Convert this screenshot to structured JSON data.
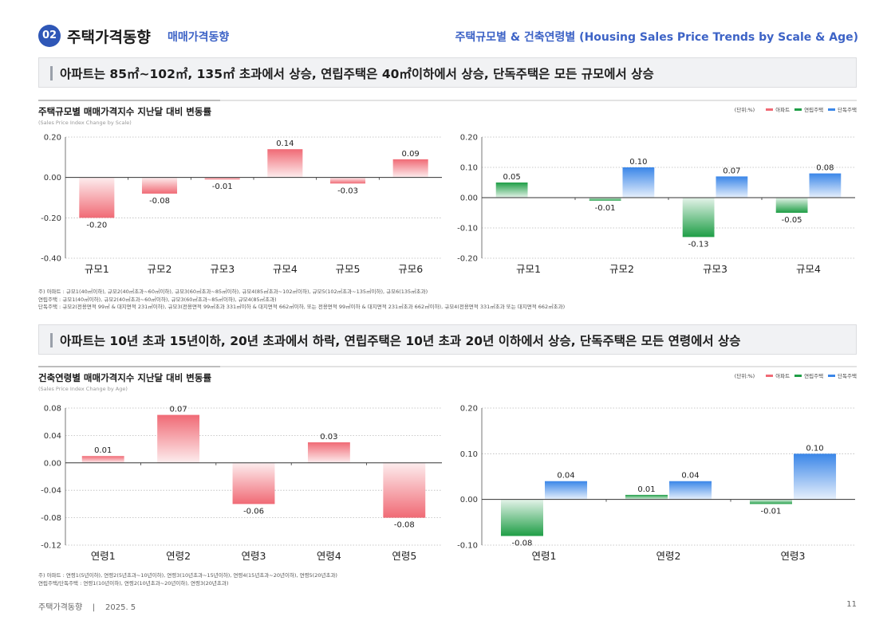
{
  "header": {
    "badge": "02",
    "title": "주택가격동향",
    "subtitle": "매매가격동향",
    "right_title": "주택규모별 & 건축연령별 (Housing Sales Price Trends by Scale & Age)"
  },
  "colors": {
    "accent": "#2f57b7",
    "apartment": "#f06a75",
    "row_house": "#1f9e46",
    "detached": "#3a86e8"
  },
  "section1": {
    "headline": "아파트는  85㎡~102㎡, 135㎡ 초과에서 상승, 연립주택은 40㎡이하에서 상승, 단독주택은 모든 규모에서 상승",
    "chart_title": "주택규모별 매매가격지수 지난달 대비 변동률",
    "chart_subtitle": "(Sales Price Index Change by Scale)",
    "legend": {
      "unit": "(단위:%)",
      "items": [
        "아파트",
        "연립주택",
        "단독주택"
      ]
    },
    "notes": [
      "주) 아파트 : 규모1(40㎡이하), 규모2(40㎡초과~60㎡이하), 규모3(60㎡초과~85㎡이하), 규모4(85㎡초과~102㎡이하), 규모5(102㎡초과~135㎡이하), 규모6(135㎡초과)",
      "     연립주택 : 규모1(40㎡이하), 규모2(40㎡초과~60㎡이하), 규모3(60㎡초과~85㎡이하), 규모4(85㎡초과)",
      "     단독주택 : 규모2(전용면적 99㎡ & 대지면적 231㎡이하), 규모3(전용면적 99㎡초과 331㎡이하 & 대지면적 662㎡이하, 또는 전용면적 99㎡이하 & 대지면적 231㎡초과 662㎡이하), 규모4(전용면적 331㎡초과 또는 대지면적 662㎡초과)"
    ]
  },
  "section2": {
    "headline": "아파트는 10년 초과 15년이하, 20년 초과에서 하락, 연립주택은 10년 초과 20년 이하에서 상승, 단독주택은 모든 연령에서 상승",
    "chart_title": "건축연령별 매매가격지수 지난달 대비 변동률",
    "chart_subtitle": "(Sales Price Index Change by Age)",
    "legend": {
      "unit": "(단위:%)",
      "items": [
        "아파트",
        "연립주택",
        "단독주택"
      ]
    },
    "notes": [
      "주) 아파트 : 연령1(5년이하), 연령2(5년초과~10년이하), 연령3(10년초과~15년이하), 연령4(15년초과~20년이하), 연령5(20년초과)",
      "     연립주택/단독주택 : 연령1(10년이하), 연령2(10년초과~20년이하), 연령3(20년초과)"
    ]
  },
  "footer": {
    "left": "주택가격동향    |    2025. 5",
    "page": "11"
  },
  "chart_data": [
    {
      "type": "bar",
      "categories": [
        "규모1",
        "규모2",
        "규모3",
        "규모4",
        "규모5",
        "규모6"
      ],
      "series": [
        {
          "name": "아파트",
          "values": [
            -0.2,
            -0.08,
            -0.01,
            0.14,
            -0.03,
            0.09
          ],
          "color": "#f06a75"
        }
      ],
      "ylim": [
        -0.4,
        0.2
      ],
      "yticks": [
        0.2,
        0.0,
        -0.2,
        -0.4
      ],
      "decimals": 2,
      "grid": true
    },
    {
      "type": "bar",
      "categories": [
        "규모1",
        "규모2",
        "규모3",
        "규모4"
      ],
      "series": [
        {
          "name": "연립주택",
          "values": [
            0.05,
            -0.01,
            -0.13,
            -0.05
          ],
          "color": "#1f9e46"
        },
        {
          "name": "단독주택",
          "values": [
            null,
            0.1,
            0.07,
            0.08
          ],
          "color": "#3a86e8"
        }
      ],
      "ylim": [
        -0.2,
        0.2
      ],
      "yticks": [
        0.2,
        0.1,
        0.0,
        -0.1,
        -0.2
      ],
      "decimals": 2,
      "grid": true
    },
    {
      "type": "bar",
      "categories": [
        "연령1",
        "연령2",
        "연령3",
        "연령4",
        "연령5"
      ],
      "series": [
        {
          "name": "아파트",
          "values": [
            0.01,
            0.07,
            -0.06,
            0.03,
            -0.08
          ],
          "color": "#f06a75"
        }
      ],
      "ylim": [
        -0.12,
        0.08
      ],
      "yticks": [
        0.08,
        0.04,
        0.0,
        -0.04,
        -0.08,
        -0.12
      ],
      "decimals": 2,
      "grid": true
    },
    {
      "type": "bar",
      "categories": [
        "연령1",
        "연령2",
        "연령3"
      ],
      "series": [
        {
          "name": "연립주택",
          "values": [
            -0.08,
            0.01,
            -0.01
          ],
          "color": "#1f9e46"
        },
        {
          "name": "단독주택",
          "values": [
            0.04,
            0.04,
            0.1
          ],
          "color": "#3a86e8"
        }
      ],
      "ylim": [
        -0.1,
        0.2
      ],
      "yticks": [
        0.2,
        0.1,
        0.0,
        -0.1
      ],
      "decimals": 2,
      "grid": true
    }
  ]
}
